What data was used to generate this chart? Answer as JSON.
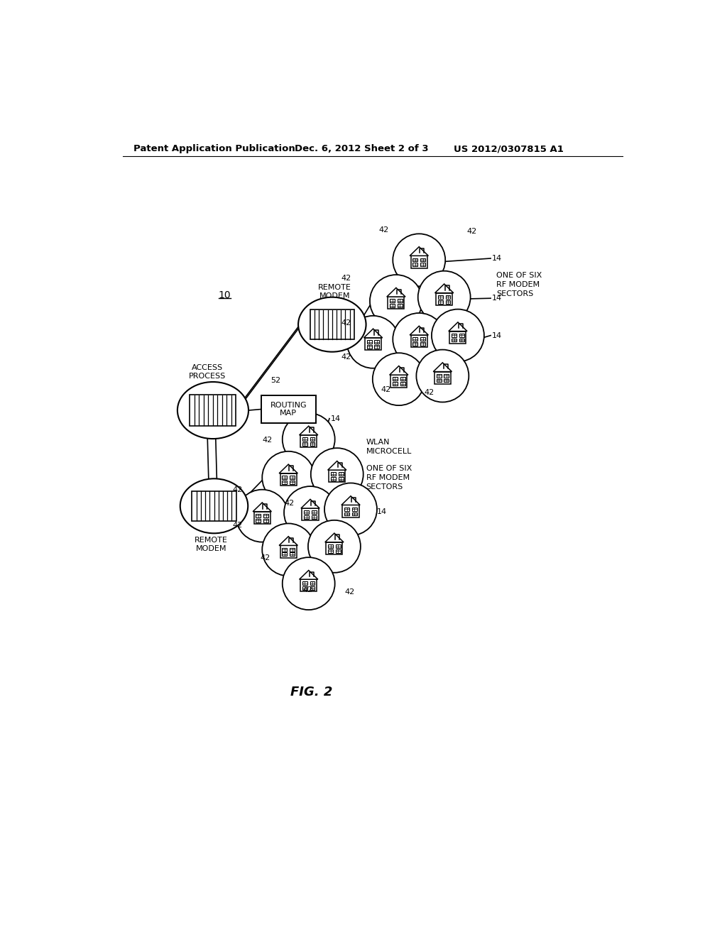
{
  "bg_color": "#ffffff",
  "header_text": "Patent Application Publication",
  "header_date": "Dec. 6, 2012",
  "header_sheet": "Sheet 2 of 3",
  "header_patent": "US 2012/0307815 A1",
  "fig_label": "FIG. 2",
  "diagram_label": "10",
  "access_process_label": "ACCESS\nPROCESS",
  "routing_map_label": "ROUTING\nMAP",
  "remote_modem_top_label": "REMOTE\nMODEM",
  "remote_modem_bot_label": "REMOTE\nMODEM",
  "wlan_microcell_label": "WLAN\nMICROCELL",
  "one_of_six_top": "ONE OF SIX\nRF MODEM\nSECTORS",
  "one_of_six_bot": "ONE OF SIX\nRF MODEM\nSECTORS",
  "label_52": "52",
  "label_14": "14",
  "label_42": "42"
}
